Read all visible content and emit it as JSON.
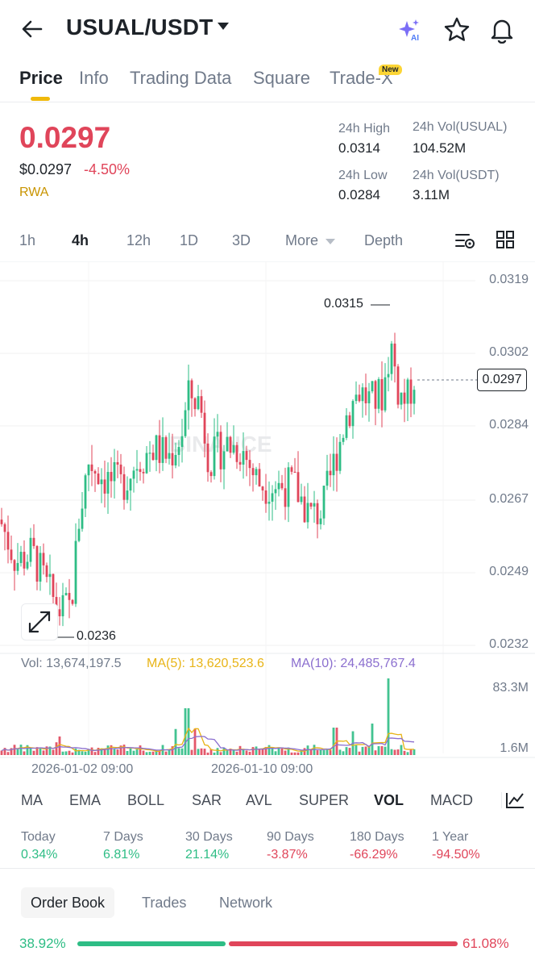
{
  "header": {
    "pair": "USUAL/USDT",
    "icons": [
      "back-arrow-icon",
      "caret-down-icon",
      "ai-sparkle-icon",
      "star-icon",
      "bell-icon"
    ]
  },
  "tabs": [
    {
      "label": "Price",
      "active": true
    },
    {
      "label": "Info"
    },
    {
      "label": "Trading Data"
    },
    {
      "label": "Square"
    },
    {
      "label": "Trade-X",
      "badge": "New"
    }
  ],
  "price": {
    "last": "0.0297",
    "usd": "$0.0297",
    "change": "-4.50%",
    "tag": "RWA"
  },
  "stats": {
    "high_label": "24h High",
    "high": "0.0314",
    "low_label": "24h Low",
    "low": "0.0284",
    "vol_base_label": "24h Vol(USUAL)",
    "vol_base": "104.52M",
    "vol_quote_label": "24h Vol(USDT)",
    "vol_quote": "3.11M"
  },
  "intervals": [
    "1h",
    "4h",
    "12h",
    "1D",
    "3D",
    "More",
    "Depth"
  ],
  "active_interval": "4h",
  "chart": {
    "price_axis": [
      "0.0319",
      "0.0302",
      "0.0284",
      "0.0267",
      "0.0249",
      "0.0232"
    ],
    "current_price": "0.0297",
    "high_marker": "0.0315",
    "low_marker": "0.0236",
    "watermark": "BINANCE",
    "vol_label": "Vol: 13,674,197.5",
    "ma5_label": "MA(5): 13,620,523.6",
    "ma10_label": "MA(10): 24,485,767.4",
    "vol_axis": [
      "83.3M",
      "1.6M"
    ],
    "time_axis": [
      "2026-01-02 09:00",
      "2026-01-10 09:00"
    ],
    "colors": {
      "up": "#2ebd85",
      "down": "#e0455a",
      "ma5": "#e8b416",
      "ma10": "#8b6fcf"
    }
  },
  "indicators": [
    "MA",
    "EMA",
    "BOLL",
    "SAR",
    "AVL",
    "SUPER",
    "VOL",
    "MACD"
  ],
  "active_indicator": "VOL",
  "performance": [
    {
      "label": "Today",
      "value": "0.34%"
    },
    {
      "label": "7 Days",
      "value": "6.81%"
    },
    {
      "label": "30 Days",
      "value": "21.14%"
    },
    {
      "label": "90 Days",
      "value": "-3.87%"
    },
    {
      "label": "180 Days",
      "value": "-66.29%"
    },
    {
      "label": "1 Year",
      "value": "-94.50%"
    }
  ],
  "order_tabs": [
    "Order Book",
    "Trades",
    "Network"
  ],
  "ratio": {
    "buy": "38.92%",
    "sell": "61.08%",
    "buy_fraction": 0.3892
  }
}
